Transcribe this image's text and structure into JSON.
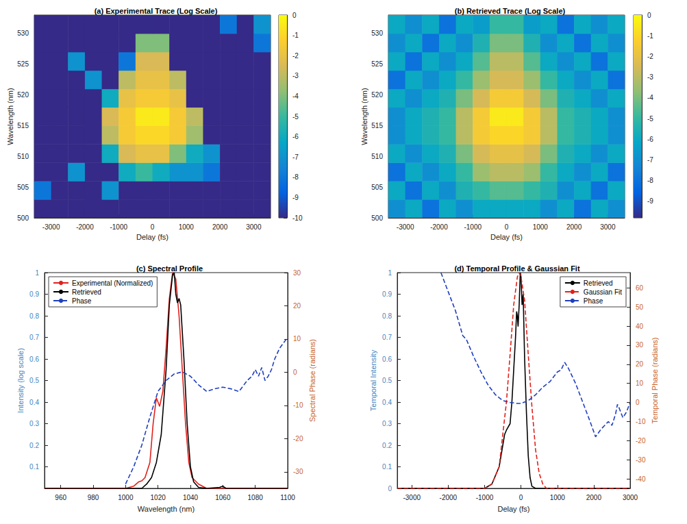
{
  "chart_data": [
    {
      "type": "heatmap",
      "title": "(a) Experimental Trace (Log Scale)",
      "x_label": "Delay (fs)",
      "y_label": "Wavelength (nm)",
      "x_bins": [
        -3500,
        -3000,
        -2500,
        -2000,
        -1500,
        -1000,
        -500,
        0,
        500,
        1000,
        1500,
        2000,
        2500,
        3000,
        3500
      ],
      "y_bins": [
        500,
        503,
        506,
        509,
        512,
        515,
        518,
        521,
        524,
        527,
        530,
        533
      ],
      "z": [
        [
          -10,
          -10,
          -10,
          -10,
          -10,
          -10,
          -10,
          -10,
          -10,
          -10,
          -10,
          -10,
          -10,
          -10
        ],
        [
          -8,
          -10,
          -10,
          -10,
          -7,
          -10,
          -10,
          -10,
          -10,
          -10,
          -10,
          -10,
          -10,
          -10
        ],
        [
          -10,
          -10,
          -7,
          -10,
          -10,
          -6,
          -5,
          -6,
          -7,
          -7,
          -8,
          -10,
          -10,
          -10
        ],
        [
          -10,
          -10,
          -10,
          -10,
          -6,
          -2.5,
          -2,
          -2,
          -4,
          -6,
          -7,
          -10,
          -10,
          -10
        ],
        [
          -10,
          -10,
          -10,
          -10,
          -3,
          -1.5,
          -1,
          -1,
          -1.5,
          -3.5,
          -10,
          -10,
          -10,
          -10
        ],
        [
          -10,
          -10,
          -10,
          -10,
          -2.5,
          -1.5,
          -0.5,
          -0.5,
          -1.5,
          -3,
          -10,
          -10,
          -10,
          -10
        ],
        [
          -10,
          -10,
          -10,
          -10,
          -6,
          -2,
          -1.5,
          -1.5,
          -2,
          -10,
          -10,
          -10,
          -10,
          -10
        ],
        [
          -10,
          -10,
          -10,
          -7,
          -10,
          -3,
          -2,
          -2,
          -3,
          -10,
          -10,
          -10,
          -10,
          -10
        ],
        [
          -10,
          -10,
          -7,
          -10,
          -10,
          -8,
          -2.5,
          -2.5,
          -10,
          -10,
          -10,
          -10,
          -10,
          -10
        ],
        [
          -10,
          -10,
          -10,
          -10,
          -10,
          -10,
          -4,
          -4,
          -10,
          -10,
          -10,
          -10,
          -10,
          -8
        ],
        [
          -10,
          -10,
          -10,
          -10,
          -10,
          -10,
          -10,
          -10,
          -10,
          -10,
          -10,
          -8,
          -10,
          -7
        ]
      ],
      "xlim": [
        -3500,
        3500
      ],
      "xticks": [
        -3000,
        -2000,
        -1000,
        0,
        1000,
        2000,
        3000
      ],
      "ylim": [
        500,
        533
      ],
      "yticks": [
        500,
        505,
        510,
        515,
        520,
        525,
        530
      ],
      "colorbar": {
        "range": [
          -10,
          0
        ],
        "ticks": [
          0,
          -1,
          -2,
          -3,
          -4,
          -5,
          -6,
          -7,
          -8,
          -9,
          -10
        ]
      },
      "grid": false
    },
    {
      "type": "heatmap",
      "title": "(b) Retrieved Trace (Log Scale)",
      "x_label": "Delay (fs)",
      "y_label": "Wavelength (nm)",
      "x_bins": [
        -3500,
        -3000,
        -2500,
        -2000,
        -1500,
        -1000,
        -500,
        0,
        500,
        1000,
        1500,
        2000,
        2500,
        3000,
        3500
      ],
      "y_bins": [
        500,
        503,
        506,
        509,
        512,
        515,
        518,
        521,
        524,
        527,
        530,
        533
      ],
      "z": [
        [
          -7,
          -6,
          -8,
          -6,
          -7,
          -6,
          -6,
          -6,
          -6,
          -7,
          -6,
          -8,
          -6,
          -7
        ],
        [
          -6,
          -8,
          -6,
          -7,
          -5.5,
          -5,
          -4.5,
          -4.5,
          -5,
          -5.5,
          -7,
          -6,
          -8,
          -6
        ],
        [
          -8,
          -6,
          -7,
          -6,
          -5,
          -3.5,
          -3,
          -3,
          -3.5,
          -5,
          -6,
          -7,
          -6,
          -8
        ],
        [
          -6,
          -7,
          -6,
          -5.5,
          -4,
          -2.5,
          -2,
          -2,
          -2.5,
          -4,
          -5.5,
          -6,
          -7,
          -6
        ],
        [
          -7,
          -6,
          -5.5,
          -5,
          -3,
          -1.5,
          -1,
          -1,
          -1.5,
          -3,
          -5,
          -5.5,
          -6,
          -7
        ],
        [
          -7,
          -6,
          -5.5,
          -5,
          -3,
          -1.5,
          -0.5,
          -0.5,
          -1.5,
          -3,
          -5,
          -5.5,
          -6,
          -7
        ],
        [
          -6,
          -7,
          -6,
          -5.5,
          -4,
          -2.5,
          -1.5,
          -1.5,
          -2.5,
          -4,
          -5.5,
          -6,
          -7,
          -6
        ],
        [
          -8,
          -6,
          -7,
          -6,
          -5,
          -3.5,
          -2.5,
          -2.5,
          -3.5,
          -5,
          -6,
          -7,
          -6,
          -8
        ],
        [
          -6,
          -8,
          -6,
          -7,
          -6,
          -4.5,
          -3,
          -3,
          -4.5,
          -6,
          -7,
          -6,
          -8,
          -6
        ],
        [
          -7,
          -6,
          -8,
          -6,
          -7,
          -5.5,
          -4,
          -4,
          -5.5,
          -7,
          -6,
          -8,
          -6,
          -7
        ],
        [
          -6,
          -7,
          -6,
          -8,
          -6,
          -6.5,
          -5,
          -5,
          -6.5,
          -6,
          -8,
          -6,
          -7,
          -6
        ]
      ],
      "xlim": [
        -3500,
        3500
      ],
      "xticks": [
        -3000,
        -2000,
        -1000,
        0,
        1000,
        2000,
        3000
      ],
      "ylim": [
        500,
        533
      ],
      "yticks": [
        500,
        505,
        510,
        515,
        520,
        525,
        530
      ],
      "colorbar": {
        "range": [
          -9.8,
          0
        ],
        "ticks": [
          0,
          -1,
          -2,
          -3,
          -4,
          -5,
          -6,
          -7,
          -8,
          -9
        ]
      },
      "grid": false
    },
    {
      "type": "line",
      "title": "(c) Spectral Profile",
      "x_label": "Wavelength (nm)",
      "y_label": "Intensity (log scale)",
      "y2_label": "Spectral Phase (radians)",
      "xlim": [
        950,
        1100
      ],
      "xticks": [
        960,
        980,
        1000,
        1020,
        1040,
        1060,
        1080,
        1100
      ],
      "ylim": [
        0,
        1
      ],
      "yticks": [
        0.1,
        0.2,
        0.3,
        0.4,
        0.5,
        0.6,
        0.7,
        0.8,
        0.9,
        1
      ],
      "y2lim": [
        -35,
        30
      ],
      "y2ticks": [
        -30,
        -20,
        -10,
        0,
        10,
        20,
        30
      ],
      "legend": "upper left",
      "grid": false,
      "series": [
        {
          "name": "Experimental (Normalized)",
          "color": "#e0201b",
          "line_style": "solid",
          "x": [
            950,
            1000,
            1005,
            1008,
            1010,
            1012,
            1015,
            1017,
            1019,
            1020,
            1021,
            1023,
            1025,
            1027,
            1029,
            1031,
            1033,
            1035,
            1037,
            1039,
            1041,
            1045,
            1050,
            1100
          ],
          "values": [
            0,
            0,
            0.01,
            0.03,
            0.035,
            0.05,
            0.12,
            0.3,
            0.42,
            0.4,
            0.38,
            0.45,
            0.65,
            0.88,
            1,
            0.97,
            0.8,
            0.55,
            0.3,
            0.12,
            0.05,
            0.02,
            0,
            0
          ]
        },
        {
          "name": "Retrieved",
          "color": "#000000",
          "line_style": "solid",
          "x": [
            950,
            1010,
            1013,
            1016,
            1019,
            1022,
            1025,
            1027,
            1029,
            1030,
            1031,
            1032,
            1033,
            1034,
            1036,
            1038,
            1040,
            1042,
            1045,
            1050,
            1058,
            1060,
            1062,
            1100
          ],
          "values": [
            0,
            0,
            0.02,
            0.05,
            0.12,
            0.25,
            0.55,
            0.85,
            0.99,
            1,
            0.9,
            0.86,
            0.88,
            0.85,
            0.6,
            0.3,
            0.1,
            0.03,
            0.005,
            0,
            0.005,
            0.01,
            0,
            0
          ]
        },
        {
          "name": "Phase",
          "color": "#1f3fbf",
          "line_style": "dashed",
          "axis": "y2",
          "x": [
            1000,
            1005,
            1010,
            1015,
            1020,
            1025,
            1030,
            1035,
            1040,
            1045,
            1050,
            1055,
            1060,
            1065,
            1070,
            1075,
            1078,
            1080,
            1082,
            1084,
            1086,
            1088,
            1090,
            1092,
            1095,
            1100
          ],
          "values": [
            -33.7,
            -28.5,
            -22,
            -13.5,
            -5.8,
            -2.5,
            -0.5,
            0.1,
            -1.2,
            -3.8,
            -5.8,
            -5,
            -4.5,
            -5,
            -5.8,
            -2.5,
            -1.2,
            0.8,
            -1.2,
            1.4,
            -2.5,
            -1.2,
            0.8,
            4,
            7.2,
            10.5
          ]
        }
      ]
    },
    {
      "type": "line",
      "title": "(d) Temporal Profile & Gaussian Fit",
      "x_label": "Delay (fs)",
      "y_label": "Temporal Intensity",
      "y2_label": "Temporal Phase (radians)",
      "xlim": [
        -3400,
        3000
      ],
      "xticks": [
        -3000,
        -2000,
        -1000,
        0,
        1000,
        2000,
        3000
      ],
      "ylim": [
        0,
        1
      ],
      "yticks": [
        0,
        0.1,
        0.2,
        0.3,
        0.4,
        0.5,
        0.6,
        0.7,
        0.8,
        0.9,
        1
      ],
      "y2lim": [
        -45,
        68
      ],
      "y2ticks": [
        -40,
        -30,
        -20,
        -10,
        0,
        10,
        20,
        30,
        40,
        50,
        60
      ],
      "legend": "upper right",
      "grid": false,
      "series": [
        {
          "name": "Retrieved",
          "color": "#000000",
          "line_style": "solid",
          "x": [
            -3400,
            -1000,
            -800,
            -600,
            -500,
            -450,
            -400,
            -300,
            -250,
            -200,
            -150,
            -120,
            -100,
            -80,
            -50,
            -20,
            0,
            30,
            60,
            100,
            150,
            200,
            250,
            300,
            400,
            3000
          ],
          "values": [
            0,
            0,
            0.02,
            0.1,
            0.2,
            0.25,
            0.27,
            0.3,
            0.4,
            0.55,
            0.7,
            0.82,
            0.8,
            0.75,
            0.85,
            1,
            0.98,
            0.85,
            0.9,
            0.6,
            0.35,
            0.15,
            0.05,
            0.01,
            0,
            0
          ]
        },
        {
          "name": "Gaussian Fit",
          "color": "#e0201b",
          "line_style": "dashed",
          "x": [
            -3400,
            -1000,
            -800,
            -600,
            -400,
            -300,
            -200,
            -100,
            -50,
            0,
            100,
            200,
            300,
            400,
            500,
            600,
            700,
            3000
          ],
          "values": [
            0,
            0,
            0.02,
            0.1,
            0.4,
            0.62,
            0.85,
            0.98,
            1,
            0.98,
            0.87,
            0.62,
            0.38,
            0.18,
            0.07,
            0.02,
            0,
            0
          ]
        },
        {
          "name": "Phase",
          "color": "#1f3fbf",
          "line_style": "dashed",
          "axis": "y2",
          "x": [
            -2200,
            -2000,
            -1800,
            -1600,
            -1500,
            -1300,
            -1100,
            -900,
            -700,
            -500,
            -300,
            -100,
            0,
            200,
            400,
            600,
            800,
            1000,
            1100,
            1200,
            1300,
            1500,
            1700,
            1900,
            2050,
            2200,
            2400,
            2500,
            2600,
            2650,
            2700,
            2800,
            2900,
            3000
          ],
          "values": [
            68,
            58,
            48,
            35,
            33,
            24,
            16,
            9,
            4,
            1,
            0,
            -0.5,
            -0.5,
            1,
            4,
            8,
            11,
            16,
            17,
            21,
            18,
            10,
            0,
            -10,
            -18,
            -14,
            -10,
            -12,
            -6,
            -1,
            -3,
            -8,
            -5,
            0
          ]
        }
      ]
    }
  ]
}
